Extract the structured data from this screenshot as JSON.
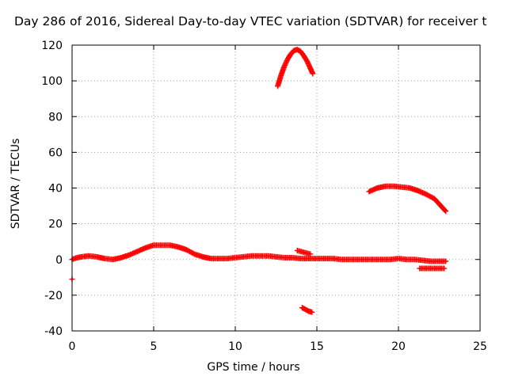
{
  "chart_data": {
    "type": "scatter",
    "title": "Day 286 of 2016, Sidereal Day-to-day VTEC variation (SDTVAR) for receiver t",
    "xlabel": "GPS time / hours",
    "ylabel": "SDTVAR / TECUs",
    "xlim": [
      0,
      25
    ],
    "ylim": [
      -40,
      120
    ],
    "x_ticks": [
      0,
      5,
      10,
      15,
      20,
      25
    ],
    "y_ticks": [
      -40,
      -20,
      0,
      20,
      40,
      60,
      80,
      100,
      120
    ],
    "x_tick_labels": [
      "0",
      "5",
      "10",
      "15",
      "20",
      "25"
    ],
    "y_tick_labels": [
      "-40",
      "-20",
      "0",
      "20",
      "40",
      "60",
      "80",
      "100",
      "120"
    ],
    "grid": true,
    "marker_color": "#ff0000",
    "series": [
      {
        "marker": "plus",
        "x": [
          0.0,
          0.0,
          0.3,
          0.6,
          1.0,
          1.5,
          2.0,
          2.5,
          3.0,
          3.5,
          4.0,
          4.5,
          5.0,
          5.5,
          6.0,
          6.5,
          7.0,
          7.5,
          8.0,
          8.5,
          9.0,
          9.5,
          10.0,
          10.5,
          11.0,
          11.5,
          12.0,
          12.5,
          13.0,
          13.5,
          14.0,
          14.5,
          15.0,
          15.5,
          16.0,
          16.5,
          17.0,
          17.5,
          18.0,
          18.5,
          19.0,
          19.5,
          20.0,
          20.5,
          21.0,
          21.5,
          22.0,
          22.5,
          22.9
        ],
        "y": [
          -11,
          0,
          1,
          1.5,
          2,
          1.5,
          0.5,
          0,
          1,
          2.5,
          4.5,
          6.5,
          8,
          8,
          8,
          7,
          5.5,
          3,
          1.5,
          0.5,
          0.5,
          0.5,
          1,
          1.5,
          2,
          2,
          2,
          1.5,
          1,
          1,
          0.5,
          0.5,
          0.5,
          0.5,
          0.5,
          0,
          0,
          0,
          0,
          0,
          0,
          0,
          0.5,
          0,
          0,
          -0.5,
          -1,
          -1,
          -1
        ]
      },
      {
        "marker": "plus",
        "x": [
          21.3,
          21.8,
          22.3,
          22.8
        ],
        "y": [
          -5,
          -5,
          -5,
          -5
        ]
      },
      {
        "marker": "plus",
        "x": [
          13.8,
          14.2,
          14.6
        ],
        "y": [
          5,
          4,
          3
        ]
      },
      {
        "marker": "plus",
        "x": [
          12.6,
          12.8,
          13.0,
          13.2,
          13.4,
          13.6,
          13.8,
          14.0,
          14.2,
          14.4,
          14.6,
          14.75
        ],
        "y": [
          97,
          103,
          108,
          112,
          115,
          117,
          117.5,
          116.5,
          114,
          111,
          107,
          104
        ]
      },
      {
        "marker": "plus",
        "x": [
          18.2,
          18.7,
          19.2,
          19.7,
          20.2,
          20.7,
          21.2,
          21.7,
          22.2,
          22.6,
          22.9
        ],
        "y": [
          38,
          40,
          41,
          41,
          40.5,
          40,
          38.5,
          36.5,
          34,
          30,
          27
        ]
      },
      {
        "marker": "plus",
        "x": [
          14.1,
          14.3,
          14.5,
          14.7
        ],
        "y": [
          -27,
          -28,
          -29,
          -29.5
        ]
      }
    ]
  }
}
